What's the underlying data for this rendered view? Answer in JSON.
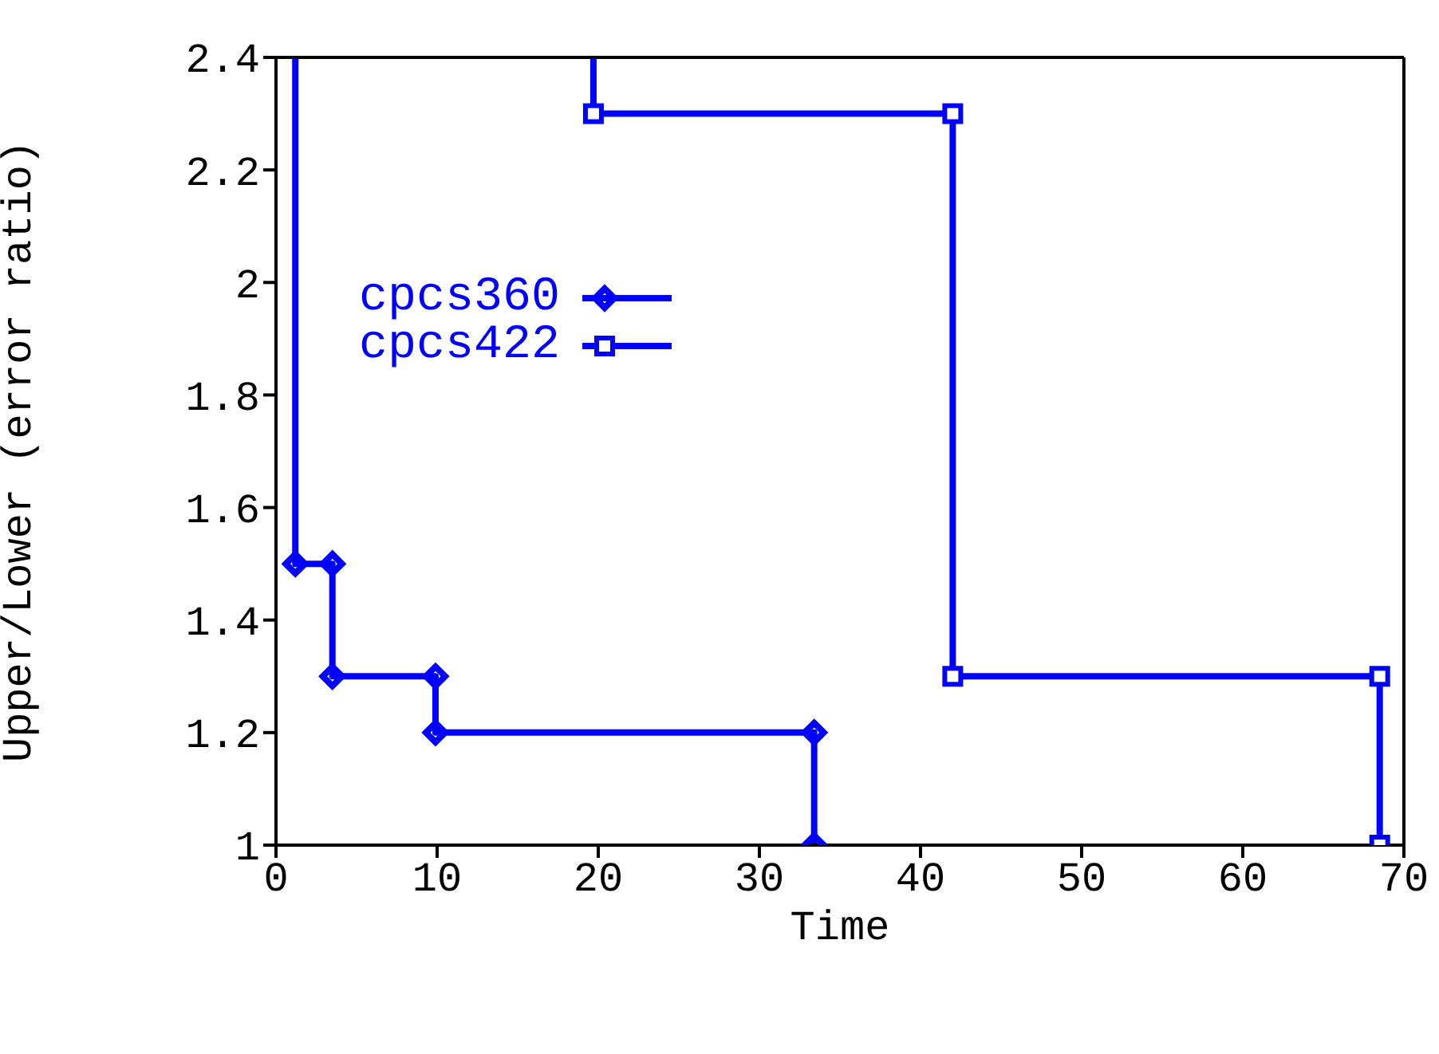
{
  "chart_data": {
    "type": "line",
    "xlabel": "Time",
    "ylabel": "Upper/Lower (error ratio)",
    "xlim": [
      0,
      70
    ],
    "xticks": [
      0,
      10,
      20,
      30,
      40,
      50,
      60,
      70
    ],
    "ylim": [
      1,
      2.4
    ],
    "yticks": [
      1,
      1.2,
      1.4,
      1.6,
      1.8,
      2,
      2.2,
      2.4
    ],
    "legend": "top left",
    "series": [
      {
        "name": "cpcs360",
        "color": "#0000ff",
        "marker": "diamond",
        "x": [
          1.2,
          1.2,
          3.5,
          3.5,
          9.9,
          9.9,
          33.4,
          33.4
        ],
        "values": [
          2.4,
          1.5,
          1.5,
          1.3,
          1.3,
          1.2,
          1.2,
          1
        ]
      },
      {
        "name": "cpcs422",
        "color": "#0000ff",
        "marker": "square",
        "x": [
          19.7,
          19.7,
          42,
          42,
          68.5,
          68.5
        ],
        "values": [
          2.4,
          2.3,
          2.3,
          1.3,
          1.3,
          1
        ]
      }
    ]
  }
}
